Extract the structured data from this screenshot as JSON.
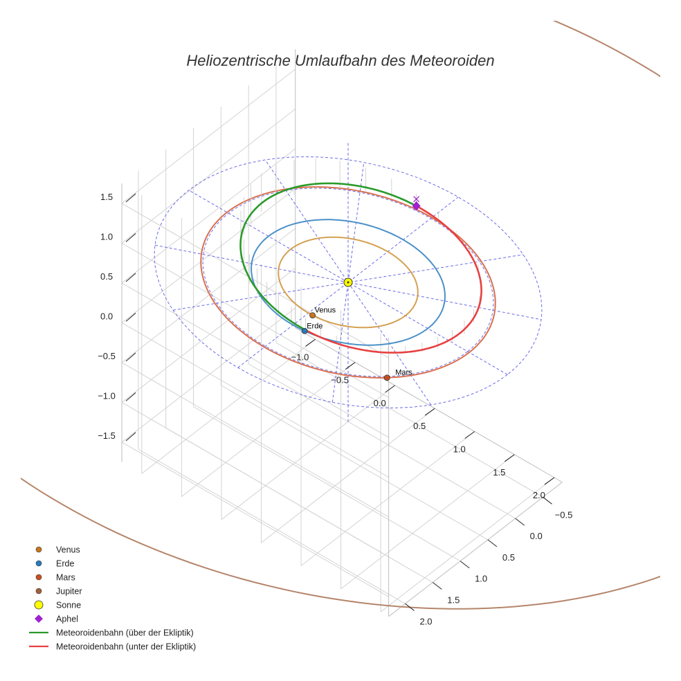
{
  "chart_data": {
    "type": "line",
    "projection": "3d",
    "title": "Heliozentrische Umlaufbahn des Meteoroiden",
    "xlim": [
      -1.25,
      2.1
    ],
    "ylim": [
      -0.85,
      2.3
    ],
    "zlim": [
      -1.75,
      1.75
    ],
    "x_ticks": [
      -1.0,
      -0.5,
      0.0,
      0.5,
      1.0,
      1.5,
      2.0
    ],
    "y_ticks": [
      -0.5,
      0.0,
      0.5,
      1.0,
      1.5,
      2.0
    ],
    "z_ticks": [
      -1.5,
      -1.0,
      -0.5,
      0.0,
      0.5,
      1.0,
      1.5
    ],
    "tick_labels": {
      "x": [
        "−1.0",
        "−0.5",
        "0.0",
        "0.5",
        "1.0",
        "1.5",
        "2.0"
      ],
      "y": [
        "−0.5",
        "0.0",
        "0.5",
        "1.0",
        "1.5",
        "2.0"
      ],
      "z": [
        "−1.5",
        "−1.0",
        "−0.5",
        "0.0",
        "0.5",
        "1.0",
        "1.5"
      ]
    },
    "grid": true,
    "ecliptic_reference_circles": [
      1.0,
      1.5,
      2.0
    ],
    "planet_orbits": [
      {
        "name": "Venus",
        "radius": 0.72,
        "color": "#d4a050"
      },
      {
        "name": "Erde",
        "radius": 1.0,
        "color": "#4a90c8"
      },
      {
        "name": "Mars",
        "radius": 1.52,
        "color": "#d9704f"
      },
      {
        "name": "Jupiter",
        "radius": 5.2,
        "color": "#b5856a"
      }
    ],
    "planet_positions": [
      {
        "name": "Venus",
        "angle_deg": 86,
        "color": "#c9751e"
      },
      {
        "name": "Erde",
        "angle_deg": 82,
        "color": "#2a7ab8"
      },
      {
        "name": "Mars",
        "angle_deg": 40,
        "color": "#c8501e"
      }
    ],
    "sun": {
      "name": "Sonne",
      "x": 0,
      "y": 0,
      "z": 0,
      "color": "#ffff00"
    },
    "meteoroid_orbit": {
      "perihelion": 0.98,
      "aphelion": 1.57,
      "longitude_perihelion_deg": 82,
      "inclination_deg": 5,
      "above_color": "#2a9a2a",
      "below_color": "#e84040"
    },
    "aphelion_point": {
      "name": "Aphel",
      "angle_deg": 262,
      "color": "#a020d0"
    },
    "legend": {
      "placement": "bottom-left",
      "entries": [
        {
          "label": "Venus",
          "symbol": "dot",
          "color": "#c9751e"
        },
        {
          "label": "Erde",
          "symbol": "dot",
          "color": "#2a7ab8"
        },
        {
          "label": "Mars",
          "symbol": "dot",
          "color": "#c8501e"
        },
        {
          "label": "Jupiter",
          "symbol": "dot",
          "color": "#a0603a"
        },
        {
          "label": "Sonne",
          "symbol": "big-dot",
          "color": "#ffff00"
        },
        {
          "label": "Aphel",
          "symbol": "diamond",
          "color": "#a020d0"
        },
        {
          "label": "Meteoroidenbahn (über der Ekliptik)",
          "symbol": "line",
          "color": "#2a9a2a"
        },
        {
          "label": "Meteoroidenbahn (unter der Ekliptik)",
          "symbol": "line",
          "color": "#e84040"
        }
      ]
    }
  }
}
